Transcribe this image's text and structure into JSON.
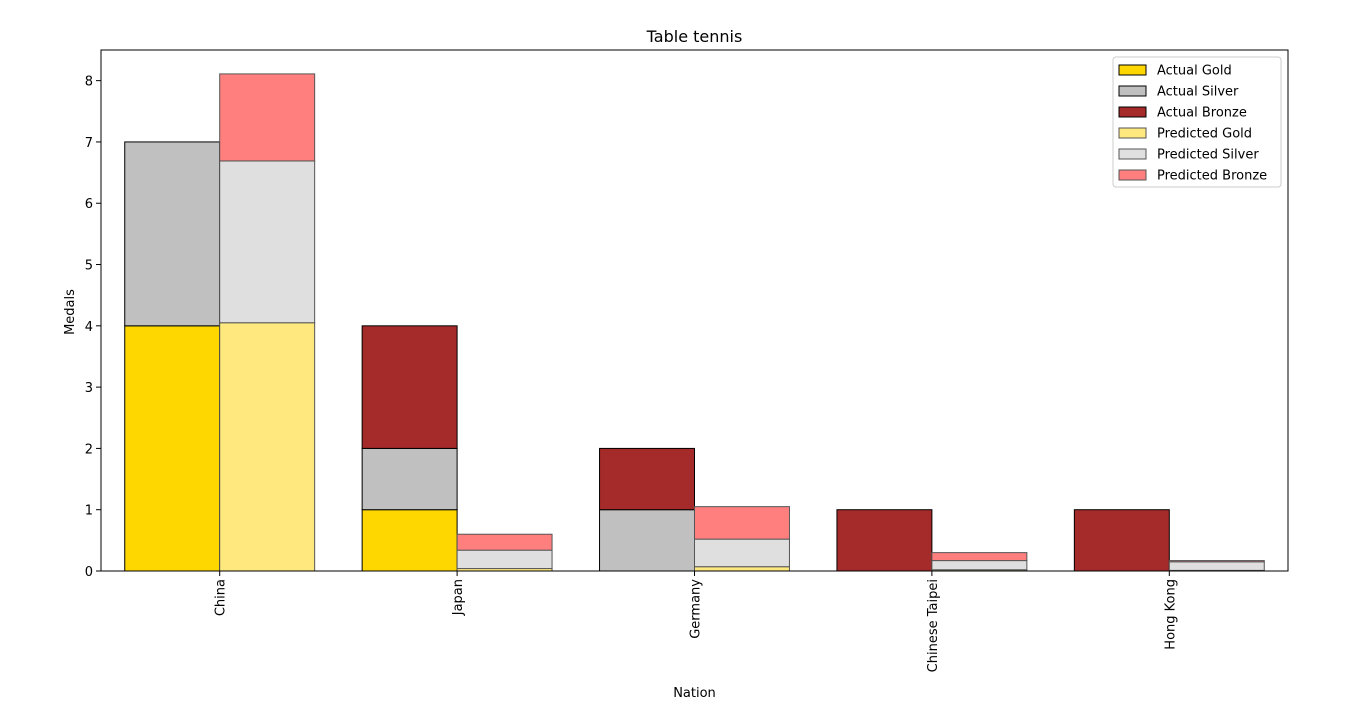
{
  "chart_data": {
    "type": "bar",
    "title": "Table tennis",
    "xlabel": "Nation",
    "ylabel": "Medals",
    "ylim": [
      0,
      8.5
    ],
    "yticks": [
      0,
      1,
      2,
      3,
      4,
      5,
      6,
      7,
      8
    ],
    "grid": false,
    "legend_position": "top-right",
    "categories": [
      "China",
      "Japan",
      "Germany",
      "Chinese Taipei",
      "Hong Kong"
    ],
    "series": [
      {
        "name": "Actual Gold",
        "group": "Actual",
        "color": "#ffd700",
        "alpha": 1.0,
        "values": [
          4,
          1,
          0,
          0,
          0
        ]
      },
      {
        "name": "Actual Silver",
        "group": "Actual",
        "color": "#c0c0c0",
        "alpha": 1.0,
        "values": [
          3,
          1,
          1,
          0,
          0
        ]
      },
      {
        "name": "Actual Bronze",
        "group": "Actual",
        "color": "#a52a2a",
        "alpha": 1.0,
        "values": [
          0,
          2,
          1,
          1,
          1
        ]
      },
      {
        "name": "Predicted Gold",
        "group": "Predicted",
        "color": "#ffe97f",
        "alpha": 1.0,
        "values": [
          4.05,
          0.04,
          0.07,
          0.02,
          0.01
        ]
      },
      {
        "name": "Predicted Silver",
        "group": "Predicted",
        "color": "#dfdfdf",
        "alpha": 1.0,
        "values": [
          2.64,
          0.3,
          0.45,
          0.15,
          0.14
        ]
      },
      {
        "name": "Predicted Bronze",
        "group": "Predicted",
        "color": "#ff7f7f",
        "alpha": 1.0,
        "values": [
          1.42,
          0.26,
          0.53,
          0.13,
          0.02
        ]
      }
    ]
  }
}
